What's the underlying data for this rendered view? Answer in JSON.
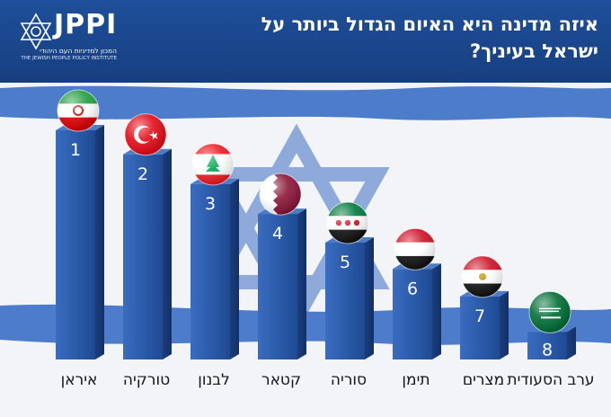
{
  "header": {
    "logo_text": "JPPI",
    "logo_subtitle_he": "המכון למדיניות העם היהודי",
    "logo_subtitle_en": "THE JEWISH PEOPLE POLICY INSTITUTE",
    "title_line1": "איזה מדינה היא האיום הגדול ביותר על",
    "title_line2": "ישראל בעיניך?"
  },
  "colors": {
    "header_bg": "#1b468c",
    "bar_front": "#2a5aa8",
    "bar_side": "#1a3e7c",
    "bar_top": "#4a7cc8"
  },
  "chart_data": {
    "type": "bar",
    "title": "איזה מדינה היא האיום הגדול ביותר על ישראל בעיניך?",
    "xlabel": "",
    "ylabel": "",
    "categories": [
      "איראן",
      "טורקיה",
      "לבנון",
      "קטאר",
      "סוריה",
      "תימן",
      "מצרים",
      "ערב הסעודית"
    ],
    "ranks": [
      1,
      2,
      3,
      4,
      5,
      6,
      7,
      8
    ],
    "bar_heights_relative": [
      1.0,
      0.895,
      0.765,
      0.635,
      0.51,
      0.395,
      0.275,
      0.12
    ],
    "flags": [
      "iran",
      "turkey",
      "lebanon",
      "qatar",
      "syria",
      "yemen",
      "egypt",
      "saudi-arabia"
    ],
    "grid": false,
    "legend": "none"
  }
}
